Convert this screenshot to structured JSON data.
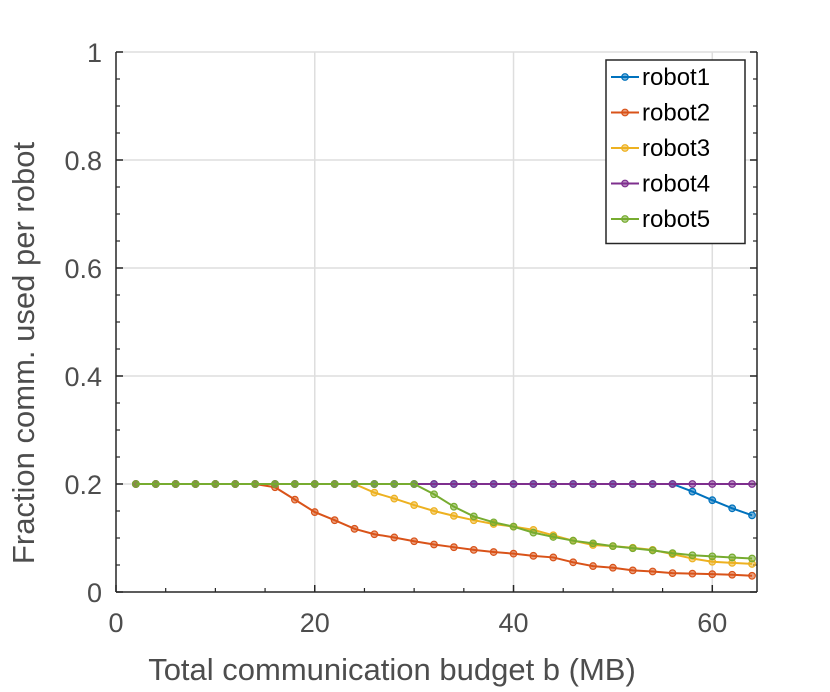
{
  "chart_data": {
    "type": "line",
    "title": "",
    "xlabel": "Total communication budget b (MB)",
    "ylabel": "Fraction comm. used per robot",
    "xlim": [
      0,
      64.5
    ],
    "ylim": [
      0,
      1
    ],
    "xticks": [
      0,
      20,
      40,
      60
    ],
    "xtick_labels": [
      "0",
      "20",
      "40",
      "60"
    ],
    "yticks": [
      0,
      0.2,
      0.4,
      0.6,
      0.8,
      1
    ],
    "ytick_labels": [
      "0",
      "0.2",
      "0.4",
      "0.6",
      "0.8",
      "1"
    ],
    "grid": true,
    "legend_position": "top-right",
    "x": [
      2,
      4,
      6,
      8,
      10,
      12,
      14,
      16,
      18,
      20,
      22,
      24,
      26,
      28,
      30,
      32,
      34,
      36,
      38,
      40,
      42,
      44,
      46,
      48,
      50,
      52,
      54,
      56,
      58,
      60,
      62,
      64
    ],
    "series": [
      {
        "name": "robot1",
        "color": "#0072bd",
        "values": [
          0.2,
          0.2,
          0.2,
          0.2,
          0.2,
          0.2,
          0.2,
          0.2,
          0.2,
          0.2,
          0.2,
          0.2,
          0.2,
          0.2,
          0.2,
          0.2,
          0.2,
          0.2,
          0.2,
          0.2,
          0.2,
          0.2,
          0.2,
          0.2,
          0.2,
          0.2,
          0.2,
          0.2,
          0.186,
          0.17,
          0.155,
          0.142
        ]
      },
      {
        "name": "robot2",
        "color": "#d95319",
        "values": [
          0.2,
          0.2,
          0.2,
          0.2,
          0.2,
          0.2,
          0.2,
          0.194,
          0.171,
          0.148,
          0.133,
          0.117,
          0.107,
          0.101,
          0.094,
          0.088,
          0.083,
          0.078,
          0.074,
          0.071,
          0.067,
          0.064,
          0.055,
          0.048,
          0.045,
          0.04,
          0.038,
          0.035,
          0.034,
          0.033,
          0.032,
          0.03
        ]
      },
      {
        "name": "robot3",
        "color": "#edb120",
        "values": [
          0.2,
          0.2,
          0.2,
          0.2,
          0.2,
          0.2,
          0.2,
          0.2,
          0.2,
          0.2,
          0.2,
          0.2,
          0.184,
          0.173,
          0.161,
          0.15,
          0.141,
          0.133,
          0.126,
          0.121,
          0.115,
          0.105,
          0.095,
          0.087,
          0.085,
          0.082,
          0.078,
          0.07,
          0.062,
          0.056,
          0.054,
          0.052
        ]
      },
      {
        "name": "robot4",
        "color": "#7e2f8e",
        "values": [
          0.2,
          0.2,
          0.2,
          0.2,
          0.2,
          0.2,
          0.2,
          0.2,
          0.2,
          0.2,
          0.2,
          0.2,
          0.2,
          0.2,
          0.2,
          0.2,
          0.2,
          0.2,
          0.2,
          0.2,
          0.2,
          0.2,
          0.2,
          0.2,
          0.2,
          0.2,
          0.2,
          0.2,
          0.2,
          0.2,
          0.2,
          0.2
        ]
      },
      {
        "name": "robot5",
        "color": "#77ac30",
        "values": [
          0.2,
          0.2,
          0.2,
          0.2,
          0.2,
          0.2,
          0.2,
          0.2,
          0.2,
          0.2,
          0.2,
          0.2,
          0.2,
          0.2,
          0.2,
          0.181,
          0.158,
          0.14,
          0.129,
          0.121,
          0.11,
          0.102,
          0.095,
          0.09,
          0.085,
          0.081,
          0.077,
          0.072,
          0.068,
          0.066,
          0.064,
          0.062
        ]
      }
    ]
  }
}
